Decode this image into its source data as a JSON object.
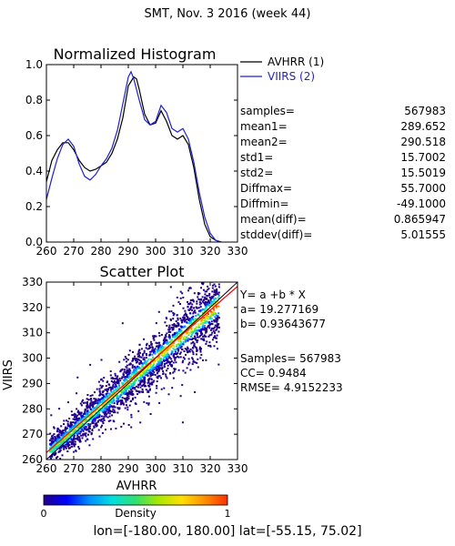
{
  "page_title": "SMT,  Nov. 3 2016 (week 44)",
  "footer": "lon=[-180.00, 180.00] lat=[-55.15, 75.02]",
  "colors": {
    "avhrr": "#000000",
    "viirs": "#2222cc",
    "fit_line": "#ff0000",
    "one_to_one_line": "#000000"
  },
  "chart_data": [
    {
      "type": "line",
      "title": "Normalized Histogram",
      "xlim": [
        260,
        330
      ],
      "ylim": [
        0,
        1.0
      ],
      "x_ticks": [
        "260",
        "270",
        "280",
        "290",
        "300",
        "310",
        "320",
        "330"
      ],
      "y_ticks": [
        "0.0",
        "0.2",
        "0.4",
        "0.6",
        "0.8",
        "1.0"
      ],
      "legend_position": "top-right outside",
      "series": [
        {
          "name": "AVHRR (1)",
          "color": "#000000",
          "x": [
            260,
            262,
            264,
            266,
            268,
            270,
            272,
            274,
            276,
            278,
            280,
            282,
            284,
            286,
            288,
            290,
            292,
            293,
            294,
            296,
            298,
            300,
            302,
            304,
            306,
            308,
            310,
            312,
            314,
            316,
            318,
            320,
            322,
            324
          ],
          "y": [
            0.34,
            0.46,
            0.52,
            0.56,
            0.56,
            0.52,
            0.46,
            0.42,
            0.4,
            0.41,
            0.43,
            0.45,
            0.5,
            0.58,
            0.7,
            0.88,
            0.93,
            0.92,
            0.86,
            0.72,
            0.66,
            0.67,
            0.74,
            0.68,
            0.6,
            0.58,
            0.6,
            0.55,
            0.42,
            0.24,
            0.1,
            0.03,
            0.01,
            0.0
          ]
        },
        {
          "name": "VIIRS (2)",
          "color": "#2222cc",
          "x": [
            260,
            262,
            264,
            266,
            268,
            270,
            272,
            274,
            276,
            278,
            280,
            282,
            284,
            286,
            288,
            290,
            291,
            292,
            294,
            296,
            298,
            300,
            302,
            304,
            306,
            308,
            310,
            312,
            314,
            316,
            318,
            320,
            322,
            324
          ],
          "y": [
            0.24,
            0.36,
            0.47,
            0.55,
            0.58,
            0.54,
            0.44,
            0.37,
            0.35,
            0.38,
            0.43,
            0.47,
            0.53,
            0.63,
            0.78,
            0.93,
            0.96,
            0.92,
            0.8,
            0.69,
            0.66,
            0.68,
            0.77,
            0.73,
            0.64,
            0.62,
            0.64,
            0.58,
            0.45,
            0.28,
            0.14,
            0.05,
            0.01,
            0.0
          ]
        }
      ],
      "stats": [
        {
          "label": "samples=",
          "value": "567983"
        },
        {
          "label": "mean1=",
          "value": "289.652"
        },
        {
          "label": "mean2=",
          "value": "290.518"
        },
        {
          "label": "std1=",
          "value": "15.7002"
        },
        {
          "label": "std2=",
          "value": "15.5019"
        },
        {
          "label": "Diffmax=",
          "value": "55.7000"
        },
        {
          "label": "Diffmin=",
          "value": "-49.1000"
        },
        {
          "label": "mean(diff)=",
          "value": "0.865947"
        },
        {
          "label": "stddev(diff)=",
          "value": "5.01555"
        }
      ]
    },
    {
      "type": "scatter",
      "title": "Scatter Plot",
      "xlabel": "AVHRR",
      "ylabel": "VIIRS",
      "xlim": [
        260,
        330
      ],
      "ylim": [
        260,
        330
      ],
      "x_ticks": [
        "260",
        "270",
        "280",
        "290",
        "300",
        "310",
        "320",
        "330"
      ],
      "y_ticks": [
        "260",
        "270",
        "280",
        "290",
        "300",
        "310",
        "320",
        "330"
      ],
      "fit": {
        "intercept": 19.277169,
        "slope": 0.93643677
      },
      "fit_text": {
        "equation": "Y= a +b * X",
        "a": "a= 19.277169",
        "b": "b= 0.93643677",
        "samples": "Samples= 567983",
        "cc": "CC=  0.9484",
        "rmse": "RMSE= 4.9152233"
      },
      "colorbar": {
        "label": "Density",
        "min_label": "0",
        "max_label": "1",
        "colors": [
          "#220088",
          "#0000ff",
          "#0090ff",
          "#00e0e0",
          "#30e070",
          "#a8e800",
          "#ffe000",
          "#ff9000",
          "#ff3000"
        ]
      }
    }
  ]
}
